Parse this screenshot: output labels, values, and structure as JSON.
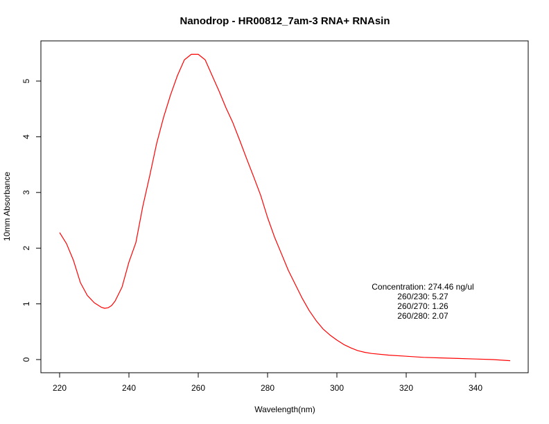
{
  "chart_data": {
    "type": "line",
    "title": "Nanodrop - HR00812_7am-3 RNA+ RNAsin",
    "xlabel": "Wavelength(nm)",
    "ylabel": "10mm Absorbance",
    "xlim": [
      220,
      350
    ],
    "ylim": [
      0,
      5.5
    ],
    "x_ticks": [
      220,
      240,
      260,
      280,
      300,
      320,
      340
    ],
    "y_ticks": [
      0,
      1,
      2,
      3,
      4,
      5
    ],
    "grid": false,
    "series": [
      {
        "color": "#ff0000",
        "x": [
          220,
          222,
          224,
          226,
          228,
          230,
          232,
          233,
          234,
          235,
          236,
          238,
          240,
          242,
          244,
          246,
          248,
          250,
          252,
          254,
          256,
          258,
          260,
          262,
          264,
          266,
          268,
          270,
          272,
          274,
          276,
          278,
          280,
          282,
          284,
          286,
          288,
          290,
          292,
          294,
          296,
          298,
          300,
          302,
          304,
          306,
          308,
          310,
          315,
          320,
          325,
          330,
          335,
          340,
          345,
          350
        ],
        "y": [
          2.28,
          2.08,
          1.78,
          1.38,
          1.15,
          1.02,
          0.94,
          0.92,
          0.93,
          0.97,
          1.05,
          1.3,
          1.75,
          2.1,
          2.75,
          3.3,
          3.88,
          4.35,
          4.75,
          5.1,
          5.38,
          5.48,
          5.48,
          5.38,
          5.1,
          4.82,
          4.52,
          4.25,
          3.93,
          3.6,
          3.28,
          2.95,
          2.55,
          2.2,
          1.9,
          1.6,
          1.35,
          1.1,
          0.88,
          0.7,
          0.55,
          0.44,
          0.35,
          0.27,
          0.21,
          0.16,
          0.13,
          0.11,
          0.08,
          0.06,
          0.04,
          0.03,
          0.02,
          0.01,
          0.0,
          -0.02
        ]
      }
    ],
    "annotations": [
      "Concentration: 274.46 ng/ul",
      "260/230: 5.27",
      "260/270: 1.26",
      "260/280: 2.07"
    ]
  }
}
